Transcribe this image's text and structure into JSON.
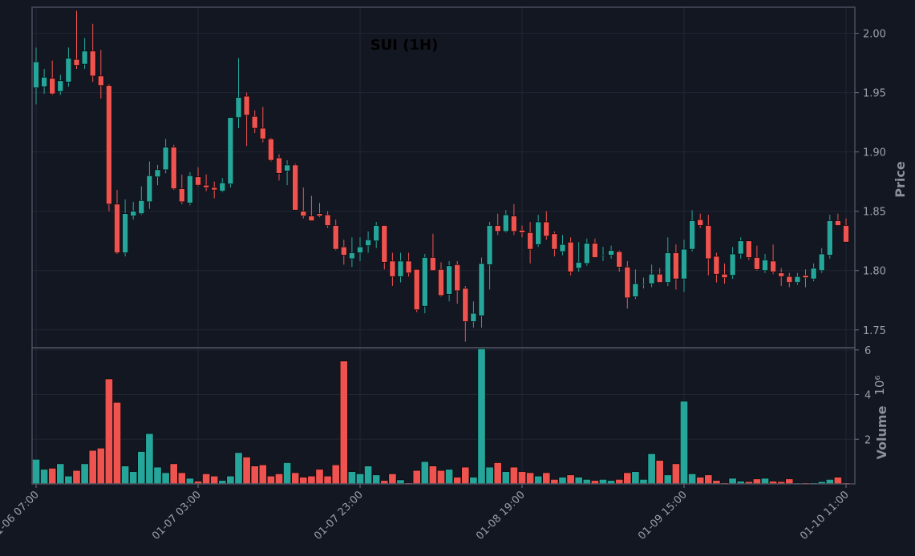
{
  "chart_data": {
    "type": "candlestick",
    "title": "SUI (1H)",
    "ylabel": "Price",
    "volume_label": "Volume",
    "volume_exponent": "10⁶",
    "ylim": [
      1.735,
      2.022
    ],
    "ylim_volume": [
      0,
      6.1
    ],
    "yticks": [
      "1.75",
      "1.80",
      "1.85",
      "1.90",
      "1.95",
      "2.00"
    ],
    "volume_yticks": [
      "2",
      "4",
      "6"
    ],
    "xtick_labels": [
      "01-06 07:00",
      "01-07 03:00",
      "01-07 23:00",
      "01-08 19:00",
      "01-09 15:00",
      "01-10 11:00"
    ],
    "xtick_index": [
      0,
      20,
      40,
      60,
      80,
      100
    ],
    "colors": {
      "up": "#26a69a",
      "down": "#ef5350",
      "background": "#131722",
      "grid": "#222735",
      "axis": "#4a4f5c"
    },
    "ohlc": [
      [
        1.954,
        1.988,
        1.94,
        1.976
      ],
      [
        1.955,
        1.97,
        1.949,
        1.963
      ],
      [
        1.962,
        1.977,
        1.948,
        1.949
      ],
      [
        1.951,
        1.965,
        1.948,
        1.96
      ],
      [
        1.959,
        1.988,
        1.955,
        1.979
      ],
      [
        1.978,
        2.019,
        1.97,
        1.973
      ],
      [
        1.974,
        1.996,
        1.97,
        1.985
      ],
      [
        1.985,
        2.008,
        1.959,
        1.964
      ],
      [
        1.964,
        1.986,
        1.945,
        1.956
      ],
      [
        1.956,
        1.957,
        1.85,
        1.856
      ],
      [
        1.856,
        1.868,
        1.814,
        1.815
      ],
      [
        1.815,
        1.86,
        1.812,
        1.848
      ],
      [
        1.846,
        1.858,
        1.843,
        1.85
      ],
      [
        1.848,
        1.871,
        1.847,
        1.859
      ],
      [
        1.858,
        1.892,
        1.852,
        1.88
      ],
      [
        1.879,
        1.889,
        1.872,
        1.885
      ],
      [
        1.885,
        1.911,
        1.882,
        1.904
      ],
      [
        1.904,
        1.906,
        1.868,
        1.869
      ],
      [
        1.869,
        1.881,
        1.856,
        1.858
      ],
      [
        1.857,
        1.883,
        1.855,
        1.88
      ],
      [
        1.879,
        1.887,
        1.871,
        1.872
      ],
      [
        1.872,
        1.881,
        1.867,
        1.87
      ],
      [
        1.87,
        1.875,
        1.861,
        1.868
      ],
      [
        1.867,
        1.878,
        1.866,
        1.874
      ],
      [
        1.873,
        1.929,
        1.87,
        1.929
      ],
      [
        1.929,
        1.979,
        1.92,
        1.946
      ],
      [
        1.947,
        1.95,
        1.905,
        1.931
      ],
      [
        1.93,
        1.935,
        1.916,
        1.92
      ],
      [
        1.92,
        1.938,
        1.908,
        1.911
      ],
      [
        1.911,
        1.912,
        1.892,
        1.893
      ],
      [
        1.895,
        1.898,
        1.876,
        1.882
      ],
      [
        1.884,
        1.893,
        1.872,
        1.889
      ],
      [
        1.889,
        1.89,
        1.852,
        1.851
      ],
      [
        1.85,
        1.87,
        1.844,
        1.846
      ],
      [
        1.846,
        1.863,
        1.842,
        1.842
      ],
      [
        1.848,
        1.857,
        1.845,
        1.846
      ],
      [
        1.847,
        1.85,
        1.836,
        1.838
      ],
      [
        1.838,
        1.843,
        1.817,
        1.818
      ],
      [
        1.82,
        1.826,
        1.805,
        1.813
      ],
      [
        1.81,
        1.828,
        1.803,
        1.815
      ],
      [
        1.815,
        1.828,
        1.808,
        1.82
      ],
      [
        1.821,
        1.833,
        1.815,
        1.826
      ],
      [
        1.825,
        1.841,
        1.819,
        1.838
      ],
      [
        1.838,
        1.838,
        1.801,
        1.807
      ],
      [
        1.808,
        1.815,
        1.787,
        1.795
      ],
      [
        1.795,
        1.815,
        1.79,
        1.808
      ],
      [
        1.808,
        1.815,
        1.795,
        1.798
      ],
      [
        1.801,
        1.801,
        1.765,
        1.767
      ],
      [
        1.77,
        1.814,
        1.764,
        1.811
      ],
      [
        1.811,
        1.831,
        1.8,
        1.8
      ],
      [
        1.801,
        1.807,
        1.778,
        1.779
      ],
      [
        1.78,
        1.808,
        1.774,
        1.804
      ],
      [
        1.805,
        1.808,
        1.772,
        1.783
      ],
      [
        1.785,
        1.787,
        1.74,
        1.757
      ],
      [
        1.757,
        1.774,
        1.752,
        1.764
      ],
      [
        1.762,
        1.811,
        1.752,
        1.806
      ],
      [
        1.805,
        1.841,
        1.784,
        1.838
      ],
      [
        1.838,
        1.848,
        1.83,
        1.833
      ],
      [
        1.833,
        1.851,
        1.832,
        1.847
      ],
      [
        1.846,
        1.856,
        1.83,
        1.833
      ],
      [
        1.834,
        1.838,
        1.828,
        1.832
      ],
      [
        1.832,
        1.841,
        1.806,
        1.818
      ],
      [
        1.822,
        1.847,
        1.82,
        1.841
      ],
      [
        1.841,
        1.85,
        1.826,
        1.829
      ],
      [
        1.831,
        1.833,
        1.812,
        1.818
      ],
      [
        1.816,
        1.83,
        1.813,
        1.822
      ],
      [
        1.824,
        1.828,
        1.796,
        1.799
      ],
      [
        1.802,
        1.824,
        1.799,
        1.807
      ],
      [
        1.806,
        1.827,
        1.804,
        1.823
      ],
      [
        1.823,
        1.827,
        1.811,
        1.811
      ],
      [
        1.813,
        1.82,
        1.808,
        1.813
      ],
      [
        1.813,
        1.821,
        1.81,
        1.817
      ],
      [
        1.816,
        1.817,
        1.799,
        1.803
      ],
      [
        1.803,
        1.808,
        1.768,
        1.777
      ],
      [
        1.778,
        1.801,
        1.776,
        1.789
      ],
      [
        1.789,
        1.794,
        1.785,
        1.789
      ],
      [
        1.789,
        1.805,
        1.786,
        1.797
      ],
      [
        1.797,
        1.802,
        1.79,
        1.79
      ],
      [
        1.79,
        1.828,
        1.787,
        1.815
      ],
      [
        1.815,
        1.822,
        1.784,
        1.793
      ],
      [
        1.793,
        1.826,
        1.782,
        1.818
      ],
      [
        1.818,
        1.851,
        1.816,
        1.842
      ],
      [
        1.843,
        1.848,
        1.836,
        1.838
      ],
      [
        1.838,
        1.847,
        1.796,
        1.81
      ],
      [
        1.812,
        1.815,
        1.79,
        1.797
      ],
      [
        1.797,
        1.806,
        1.789,
        1.794
      ],
      [
        1.796,
        1.82,
        1.793,
        1.814
      ],
      [
        1.814,
        1.828,
        1.81,
        1.825
      ],
      [
        1.825,
        1.825,
        1.809,
        1.811
      ],
      [
        1.811,
        1.821,
        1.8,
        1.801
      ],
      [
        1.8,
        1.814,
        1.798,
        1.809
      ],
      [
        1.808,
        1.822,
        1.797,
        1.799
      ],
      [
        1.798,
        1.802,
        1.787,
        1.795
      ],
      [
        1.795,
        1.798,
        1.786,
        1.79
      ],
      [
        1.79,
        1.798,
        1.788,
        1.795
      ],
      [
        1.796,
        1.801,
        1.786,
        1.794
      ],
      [
        1.793,
        1.806,
        1.791,
        1.802
      ],
      [
        1.8,
        1.819,
        1.798,
        1.814
      ],
      [
        1.813,
        1.847,
        1.81,
        1.842
      ],
      [
        1.842,
        1.848,
        1.838,
        1.838
      ],
      [
        1.838,
        1.844,
        1.824,
        1.824
      ]
    ],
    "volume": [
      1.1,
      0.65,
      0.7,
      0.9,
      0.35,
      0.6,
      0.9,
      1.5,
      1.6,
      4.7,
      3.65,
      0.8,
      0.55,
      1.45,
      2.25,
      0.75,
      0.5,
      0.9,
      0.5,
      0.25,
      0.12,
      0.45,
      0.35,
      0.15,
      0.35,
      1.4,
      1.2,
      0.8,
      0.85,
      0.35,
      0.45,
      0.95,
      0.5,
      0.3,
      0.35,
      0.65,
      0.35,
      0.85,
      5.5,
      0.55,
      0.45,
      0.8,
      0.4,
      0.15,
      0.45,
      0.18,
      0.05,
      0.6,
      1.0,
      0.8,
      0.6,
      0.65,
      0.3,
      0.75,
      0.3,
      6.05,
      0.75,
      0.95,
      0.55,
      0.75,
      0.55,
      0.5,
      0.35,
      0.5,
      0.2,
      0.3,
      0.4,
      0.3,
      0.2,
      0.15,
      0.2,
      0.15,
      0.2,
      0.5,
      0.55,
      0.2,
      1.35,
      1.05,
      0.4,
      0.9,
      3.7,
      0.45,
      0.3,
      0.4,
      0.15,
      0.05,
      0.25,
      0.12,
      0.1,
      0.22,
      0.25,
      0.12,
      0.1,
      0.22,
      0.04,
      0.05,
      0.05,
      0.1,
      0.2,
      0.3,
      0.05
    ]
  }
}
